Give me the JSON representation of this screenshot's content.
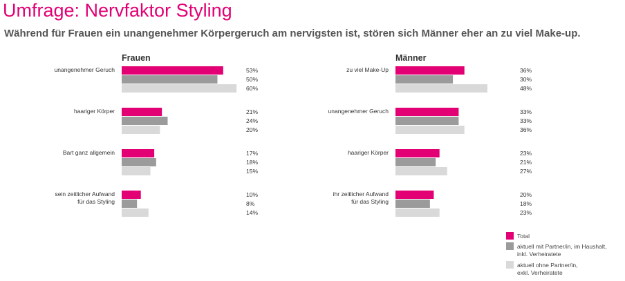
{
  "title": "Umfrage: Nervfaktor Styling",
  "subtitle": "Während für Frauen ein unangenehmer Körpergeruch am nervigsten ist, stören sich Männer eher an zu viel Make-up.",
  "colors": {
    "Total": "#e20074",
    "mit_partner": "#9b9b9b",
    "ohne_partner": "#d9d9d9",
    "title": "#e20074"
  },
  "legend": [
    {
      "lines": [
        "Total"
      ]
    },
    {
      "lines": [
        "aktuell mit Partner/in, im Haushalt,",
        "inkl. Verheiratete"
      ]
    },
    {
      "lines": [
        "aktuell ohne Partner/in,",
        "exkl. Verheiratete"
      ]
    }
  ],
  "chart_data": [
    {
      "type": "bar",
      "orientation": "horizontal",
      "title": "Frauen",
      "categories": [
        [
          "unangenehmer Geruch"
        ],
        [
          "haariger Körper"
        ],
        [
          "Bart ganz allgemein"
        ],
        [
          "sein zeitlicher Aufwand",
          "für das Styling"
        ]
      ],
      "series": [
        {
          "name": "Total",
          "values": [
            53,
            21,
            17,
            10
          ]
        },
        {
          "name": "aktuell mit Partner/in, im Haushalt, inkl. Verheiratete",
          "values": [
            50,
            24,
            18,
            8
          ]
        },
        {
          "name": "aktuell ohne Partner/in, exkl. Verheiratete",
          "values": [
            60,
            20,
            15,
            14
          ]
        }
      ],
      "unit": "%"
    },
    {
      "type": "bar",
      "orientation": "horizontal",
      "title": "Männer",
      "categories": [
        [
          "zu viel Make-Up"
        ],
        [
          "unangenehmer Geruch"
        ],
        [
          "haariger Körper"
        ],
        [
          "ihr zeitlicher Aufwand",
          "für das Styling"
        ]
      ],
      "series": [
        {
          "name": "Total",
          "values": [
            36,
            33,
            23,
            20
          ]
        },
        {
          "name": "aktuell mit Partner/in, im Haushalt, inkl. Verheiratete",
          "values": [
            30,
            33,
            21,
            18
          ]
        },
        {
          "name": "aktuell ohne Partner/in, exkl. Verheiratete",
          "values": [
            48,
            36,
            27,
            23
          ]
        }
      ],
      "unit": "%"
    }
  ]
}
